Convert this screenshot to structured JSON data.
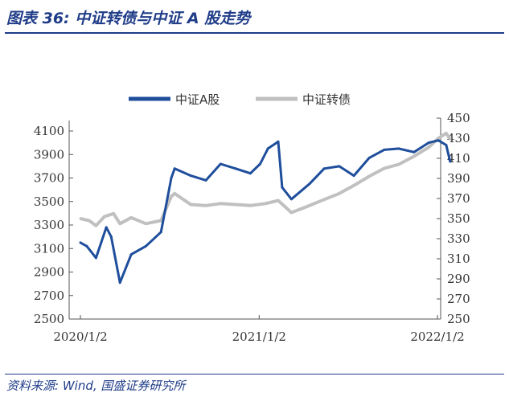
{
  "header": {
    "title": "图表 36:  中证转债与中证 A 股走势"
  },
  "footer": {
    "source": "资料来源:  Wind,  国盛证券研究所"
  },
  "chart_data": {
    "type": "line",
    "legend": [
      "中证A股",
      "中证转债"
    ],
    "legend_placement": "top",
    "grid": false,
    "colors": {
      "中证A股": "#1f4e9c",
      "中证转债": "#c0c0c0"
    },
    "x_ticks": [
      "2020/1/2",
      "2021/1/2",
      "2022/1/2"
    ],
    "y_left": {
      "ticks": [
        "4100",
        "3900",
        "3700",
        "3500",
        "3300",
        "3100",
        "2900",
        "2700",
        "2500"
      ],
      "range": [
        2500,
        4100
      ]
    },
    "y_right": {
      "ticks": [
        "450",
        "430",
        "410",
        "390",
        "370",
        "350",
        "330",
        "310",
        "290",
        "270",
        "250"
      ],
      "range": [
        250,
        450
      ]
    },
    "series": [
      {
        "name": "中证A股",
        "axis": "left",
        "x": [
          "2020-01-02",
          "2020-01-15",
          "2020-02-03",
          "2020-02-24",
          "2020-03-05",
          "2020-03-23",
          "2020-04-15",
          "2020-05-15",
          "2020-06-15",
          "2020-07-06",
          "2020-07-13",
          "2020-08-15",
          "2020-09-15",
          "2020-10-15",
          "2020-11-15",
          "2020-12-15",
          "2021-01-04",
          "2021-01-20",
          "2021-02-10",
          "2021-02-18",
          "2021-03-09",
          "2021-04-15",
          "2021-05-15",
          "2021-06-15",
          "2021-07-15",
          "2021-08-15",
          "2021-09-15",
          "2021-10-15",
          "2021-11-15",
          "2021-12-15",
          "2022-01-04",
          "2022-01-20",
          "2022-01-28"
        ],
        "y": [
          3150,
          3120,
          3020,
          3280,
          3200,
          2810,
          3050,
          3120,
          3240,
          3700,
          3780,
          3720,
          3680,
          3820,
          3780,
          3740,
          3820,
          3950,
          4010,
          3620,
          3520,
          3650,
          3780,
          3800,
          3720,
          3870,
          3940,
          3950,
          3920,
          4000,
          4020,
          3980,
          3840
        ]
      },
      {
        "name": "中证转债",
        "axis": "right",
        "x": [
          "2020-01-02",
          "2020-01-20",
          "2020-02-03",
          "2020-02-20",
          "2020-03-10",
          "2020-03-23",
          "2020-04-15",
          "2020-05-15",
          "2020-06-15",
          "2020-07-06",
          "2020-07-13",
          "2020-08-15",
          "2020-09-15",
          "2020-10-15",
          "2020-11-15",
          "2020-12-15",
          "2021-01-15",
          "2021-02-10",
          "2021-03-09",
          "2021-04-15",
          "2021-05-15",
          "2021-06-15",
          "2021-07-15",
          "2021-08-15",
          "2021-09-15",
          "2021-10-15",
          "2021-11-15",
          "2021-12-15",
          "2022-01-04",
          "2022-01-20",
          "2022-01-28"
        ],
        "y": [
          350,
          348,
          343,
          352,
          355,
          345,
          351,
          345,
          348,
          372,
          375,
          364,
          363,
          365,
          364,
          363,
          365,
          368,
          356,
          363,
          369,
          375,
          383,
          392,
          400,
          404,
          412,
          421,
          430,
          435,
          429
        ]
      }
    ]
  }
}
